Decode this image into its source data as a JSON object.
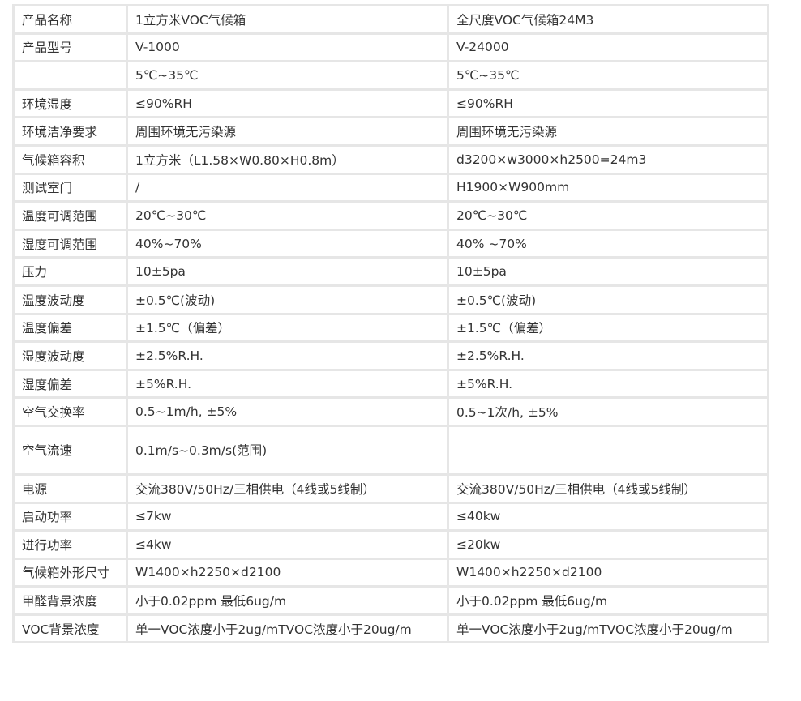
{
  "rows": [
    [
      "产品名称",
      "1立方米VOC气候箱",
      "全尺度VOC气候箱24M3"
    ],
    [
      "产品型号",
      "V-1000",
      "V-24000"
    ],
    [
      "",
      "5℃~35℃",
      "5℃~35℃"
    ],
    [
      "环境湿度",
      "≤90%RH",
      "≤90%RH"
    ],
    [
      "环境洁净要求",
      "周围环境无污染源",
      "周围环境无污染源"
    ],
    [
      "气候箱容积",
      "1立方米（L1.58×W0.80×H0.8m）",
      "d3200×w3000×h2500=24m3"
    ],
    [
      "测试室门",
      "/",
      "H1900×W900mm"
    ],
    [
      "温度可调范围",
      "20℃~30℃",
      "20℃~30℃"
    ],
    [
      "湿度可调范围",
      "40%~70%",
      "40% ~70%"
    ],
    [
      "压力",
      "10±5pa",
      "10±5pa"
    ],
    [
      "温度波动度",
      "±0.5℃(波动)",
      "±0.5℃(波动)"
    ],
    [
      "温度偏差",
      "±1.5℃（偏差）",
      "±1.5℃（偏差）"
    ],
    [
      "湿度波动度",
      "±2.5%R.H.",
      "±2.5%R.H."
    ],
    [
      "湿度偏差",
      "±5%R.H.",
      "±5%R.H."
    ],
    [
      "空气交换率",
      "0.5~1m/h, ±5%",
      "0.5~1次/h, ±5%"
    ],
    [
      "空气流速",
      "0.1m/s~0.3m/s(范围)",
      ""
    ],
    [
      "电源",
      "交流380V/50Hz/三相供电（4线或5线制）",
      "交流380V/50Hz/三相供电（4线或5线制）"
    ],
    [
      "启动功率",
      "≤7kw",
      "≤40kw"
    ],
    [
      "进行功率",
      "≤4kw",
      "≤20kw"
    ],
    [
      "气候箱外形尺寸",
      "W1400×h2250×d2100",
      "W1400×h2250×d2100"
    ],
    [
      "甲醛背景浓度",
      "小于0.02ppm 最低6ug/m",
      "小于0.02ppm 最低6ug/m"
    ],
    [
      "VOC背景浓度",
      "单一VOC浓度小于2ug/mTVOC浓度小于20ug/m",
      "单一VOC浓度小于2ug/mTVOC浓度小于20ug/m"
    ]
  ]
}
